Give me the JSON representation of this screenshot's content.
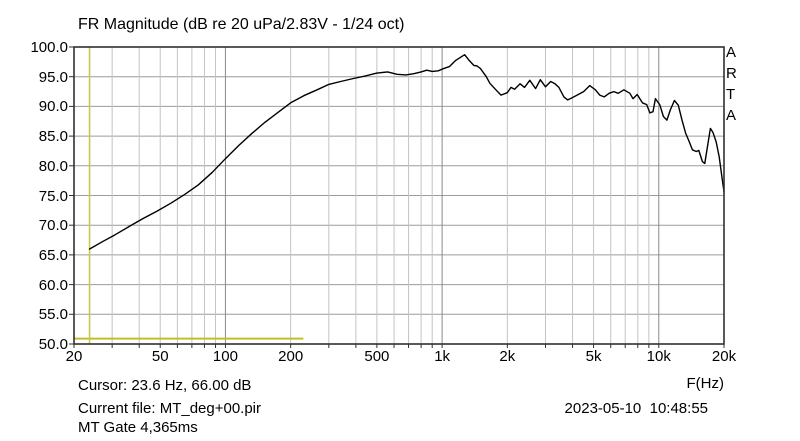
{
  "title": "FR Magnitude (dB re 20 uPa/2.83V - 1/24 oct)",
  "watermark": "ARTA",
  "footer": {
    "cursor_readout": "Cursor: 23.6 Hz, 66.00 dB",
    "x_axis_unit": "F(Hz)",
    "current_file": "Current file: MT_deg+00.pir",
    "datetime": "2023-05-10  10:48:55",
    "gate": "MT Gate 4,365ms"
  },
  "chart_data": {
    "type": "line",
    "title": "FR Magnitude (dB re 20 uPa/2.83V - 1/24 oct)",
    "x_scale": "log",
    "xlim": [
      20,
      20000
    ],
    "ylim": [
      50,
      100
    ],
    "xlabel": "F(Hz)",
    "ylabel": "dB re 20 uPa/2.83V",
    "grid": true,
    "legend": "none",
    "yticks": [
      {
        "value": 100,
        "label": "100.0"
      },
      {
        "value": 95,
        "label": "95.0"
      },
      {
        "value": 90,
        "label": "90.0"
      },
      {
        "value": 85,
        "label": "85.0"
      },
      {
        "value": 80,
        "label": "80.0"
      },
      {
        "value": 75,
        "label": "75.0"
      },
      {
        "value": 70,
        "label": "70.0"
      },
      {
        "value": 65,
        "label": "65.0"
      },
      {
        "value": 60,
        "label": "60.0"
      },
      {
        "value": 55,
        "label": "55.0"
      },
      {
        "value": 50,
        "label": "50.0"
      }
    ],
    "xticks": [
      {
        "value": 20,
        "label": "20"
      },
      {
        "value": 50,
        "label": "50"
      },
      {
        "value": 100,
        "label": "100"
      },
      {
        "value": 200,
        "label": "200"
      },
      {
        "value": 500,
        "label": "500"
      },
      {
        "value": 1000,
        "label": "1k"
      },
      {
        "value": 2000,
        "label": "2k"
      },
      {
        "value": 5000,
        "label": "5k"
      },
      {
        "value": 10000,
        "label": "10k"
      },
      {
        "value": 20000,
        "label": "20k"
      }
    ],
    "minor_grid_freqs": [
      30,
      40,
      50,
      60,
      70,
      80,
      90,
      200,
      300,
      400,
      500,
      600,
      700,
      800,
      900,
      2000,
      3000,
      4000,
      5000,
      6000,
      7000,
      8000,
      9000
    ],
    "decade_grid_freqs": [
      100,
      1000,
      10000
    ],
    "cursor": {
      "freq_hz": 23.6,
      "level_db": 66.0
    },
    "gate_marker": {
      "from_hz": 20,
      "to_hz": 229,
      "level_db": 50.9
    },
    "colors": {
      "curve": "#000000",
      "cursor_line": "#c9c94a",
      "gate_line": "#bfbf2d",
      "h_grid": "#9c9c9c",
      "minor_grid": "#c3c3c3",
      "decade_grid": "#8a8a8a",
      "border": "#303030",
      "background": "#ffffff",
      "text": "#000000"
    },
    "series": [
      {
        "name": "FR magnitude",
        "color": "#000000",
        "points": [
          [
            23.6,
            66.0
          ],
          [
            27,
            67.2
          ],
          [
            31,
            68.4
          ],
          [
            36,
            69.8
          ],
          [
            42,
            71.2
          ],
          [
            48,
            72.3
          ],
          [
            56,
            73.7
          ],
          [
            65,
            75.2
          ],
          [
            75,
            76.8
          ],
          [
            87,
            78.9
          ],
          [
            100,
            81.2
          ],
          [
            115,
            83.4
          ],
          [
            132,
            85.4
          ],
          [
            152,
            87.3
          ],
          [
            175,
            89.0
          ],
          [
            200,
            90.6
          ],
          [
            230,
            91.8
          ],
          [
            265,
            92.8
          ],
          [
            300,
            93.7
          ],
          [
            340,
            94.2
          ],
          [
            390,
            94.7
          ],
          [
            440,
            95.1
          ],
          [
            500,
            95.6
          ],
          [
            560,
            95.8
          ],
          [
            620,
            95.4
          ],
          [
            680,
            95.3
          ],
          [
            740,
            95.5
          ],
          [
            800,
            95.8
          ],
          [
            850,
            96.1
          ],
          [
            900,
            95.9
          ],
          [
            960,
            96.0
          ],
          [
            1020,
            96.4
          ],
          [
            1080,
            96.7
          ],
          [
            1150,
            97.7
          ],
          [
            1270,
            98.7
          ],
          [
            1330,
            97.8
          ],
          [
            1400,
            96.9
          ],
          [
            1450,
            96.8
          ],
          [
            1500,
            96.4
          ],
          [
            1600,
            95.0
          ],
          [
            1660,
            93.9
          ],
          [
            1760,
            92.9
          ],
          [
            1870,
            91.9
          ],
          [
            2000,
            92.3
          ],
          [
            2080,
            93.2
          ],
          [
            2160,
            92.9
          ],
          [
            2290,
            93.8
          ],
          [
            2400,
            93.2
          ],
          [
            2540,
            94.4
          ],
          [
            2700,
            93.0
          ],
          [
            2840,
            94.5
          ],
          [
            3000,
            93.3
          ],
          [
            3170,
            94.2
          ],
          [
            3320,
            93.8
          ],
          [
            3460,
            93.2
          ],
          [
            3650,
            91.6
          ],
          [
            3800,
            91.1
          ],
          [
            3950,
            91.4
          ],
          [
            4200,
            91.9
          ],
          [
            4500,
            92.5
          ],
          [
            4800,
            93.5
          ],
          [
            5100,
            92.8
          ],
          [
            5340,
            91.9
          ],
          [
            5600,
            91.6
          ],
          [
            5900,
            92.2
          ],
          [
            6200,
            92.5
          ],
          [
            6500,
            92.2
          ],
          [
            6900,
            92.8
          ],
          [
            7360,
            92.2
          ],
          [
            7600,
            91.3
          ],
          [
            7950,
            92.0
          ],
          [
            8400,
            90.6
          ],
          [
            8800,
            90.3
          ],
          [
            9100,
            88.9
          ],
          [
            9400,
            89.1
          ],
          [
            9650,
            91.3
          ],
          [
            10100,
            90.3
          ],
          [
            10500,
            88.3
          ],
          [
            10900,
            87.7
          ],
          [
            11300,
            89.4
          ],
          [
            11800,
            91.0
          ],
          [
            12300,
            90.2
          ],
          [
            12800,
            87.7
          ],
          [
            13300,
            85.5
          ],
          [
            13800,
            84.1
          ],
          [
            14300,
            82.7
          ],
          [
            14900,
            82.4
          ],
          [
            15300,
            82.6
          ],
          [
            15900,
            80.7
          ],
          [
            16300,
            80.4
          ],
          [
            16900,
            84.0
          ],
          [
            17300,
            86.3
          ],
          [
            17800,
            85.6
          ],
          [
            18400,
            84.0
          ],
          [
            19000,
            81.5
          ],
          [
            19500,
            78.5
          ],
          [
            20000,
            75.6
          ]
        ]
      }
    ]
  }
}
